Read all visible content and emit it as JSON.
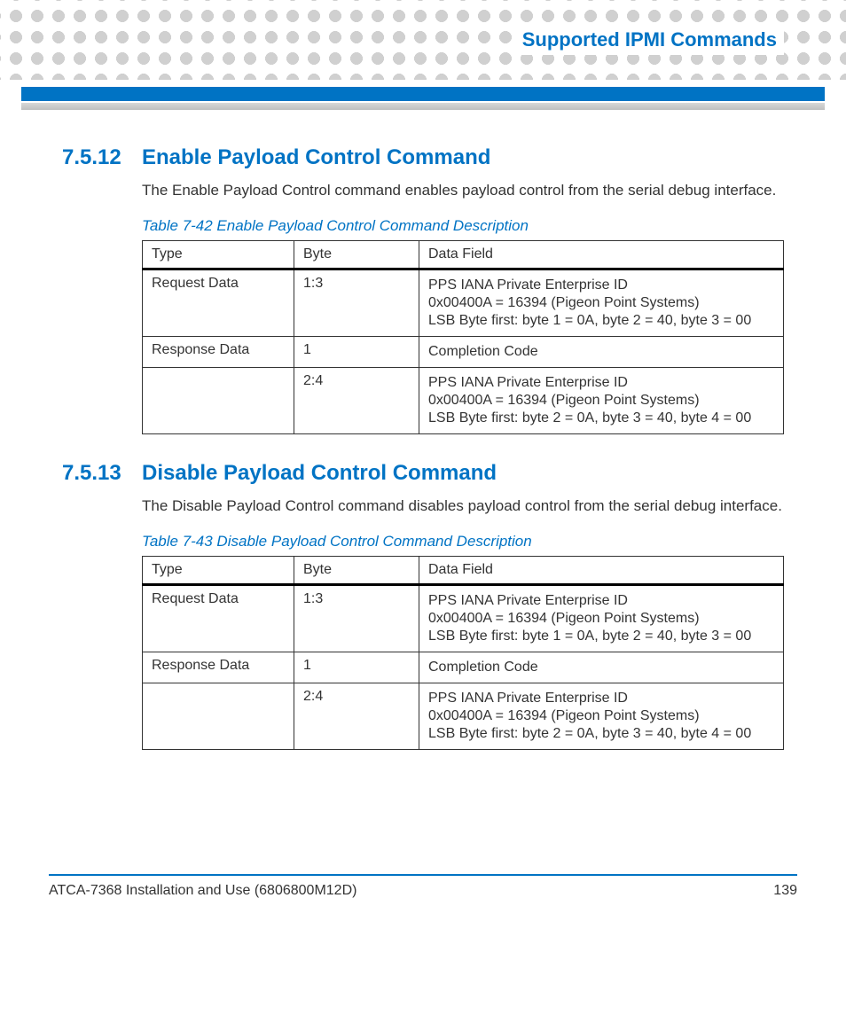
{
  "header": {
    "title": "Supported IPMI Commands"
  },
  "sections": [
    {
      "num": "7.5.12",
      "title": "Enable Payload Control Command",
      "body": "The Enable Payload Control command enables payload control from the serial debug interface.",
      "caption": "Table 7-42 Enable Payload Control Command Description",
      "columns": [
        "Type",
        "Byte",
        "Data Field"
      ],
      "rows": [
        {
          "type": "Request Data",
          "byte": "1:3",
          "data": [
            "PPS IANA Private Enterprise ID",
            "0x00400A = 16394 (Pigeon Point Systems)",
            "LSB Byte first: byte 1 = 0A, byte 2 = 40, byte 3 = 00"
          ]
        },
        {
          "type": "Response Data",
          "byte": "1",
          "data": [
            "Completion Code"
          ]
        },
        {
          "type": "",
          "byte": "2:4",
          "data": [
            "PPS IANA Private Enterprise ID",
            "0x00400A = 16394 (Pigeon Point Systems)",
            "LSB Byte first: byte 2 = 0A, byte 3 = 40, byte 4 = 00"
          ]
        }
      ]
    },
    {
      "num": "7.5.13",
      "title": "Disable Payload Control Command",
      "body": "The Disable Payload Control command disables payload control from the serial debug interface.",
      "caption": "Table 7-43 Disable Payload Control Command Description",
      "columns": [
        "Type",
        "Byte",
        "Data Field"
      ],
      "rows": [
        {
          "type": "Request Data",
          "byte": "1:3",
          "data": [
            "PPS IANA Private Enterprise ID",
            "0x00400A = 16394 (Pigeon Point Systems)",
            "LSB Byte first: byte 1 = 0A, byte 2 = 40, byte 3 = 00"
          ]
        },
        {
          "type": "Response Data",
          "byte": "1",
          "data": [
            "Completion Code"
          ]
        },
        {
          "type": "",
          "byte": "2:4",
          "data": [
            "PPS IANA Private Enterprise ID",
            "0x00400A = 16394 (Pigeon Point Systems)",
            "LSB Byte first: byte 2 = 0A, byte 3 = 40, byte 4 = 00"
          ]
        }
      ]
    }
  ],
  "footer": {
    "doc": "ATCA-7368 Installation and Use (6806800M12D)",
    "page": "139"
  },
  "colors": {
    "accent": "#0073c4",
    "dot": "#d0d0d0",
    "text": "#333333"
  }
}
